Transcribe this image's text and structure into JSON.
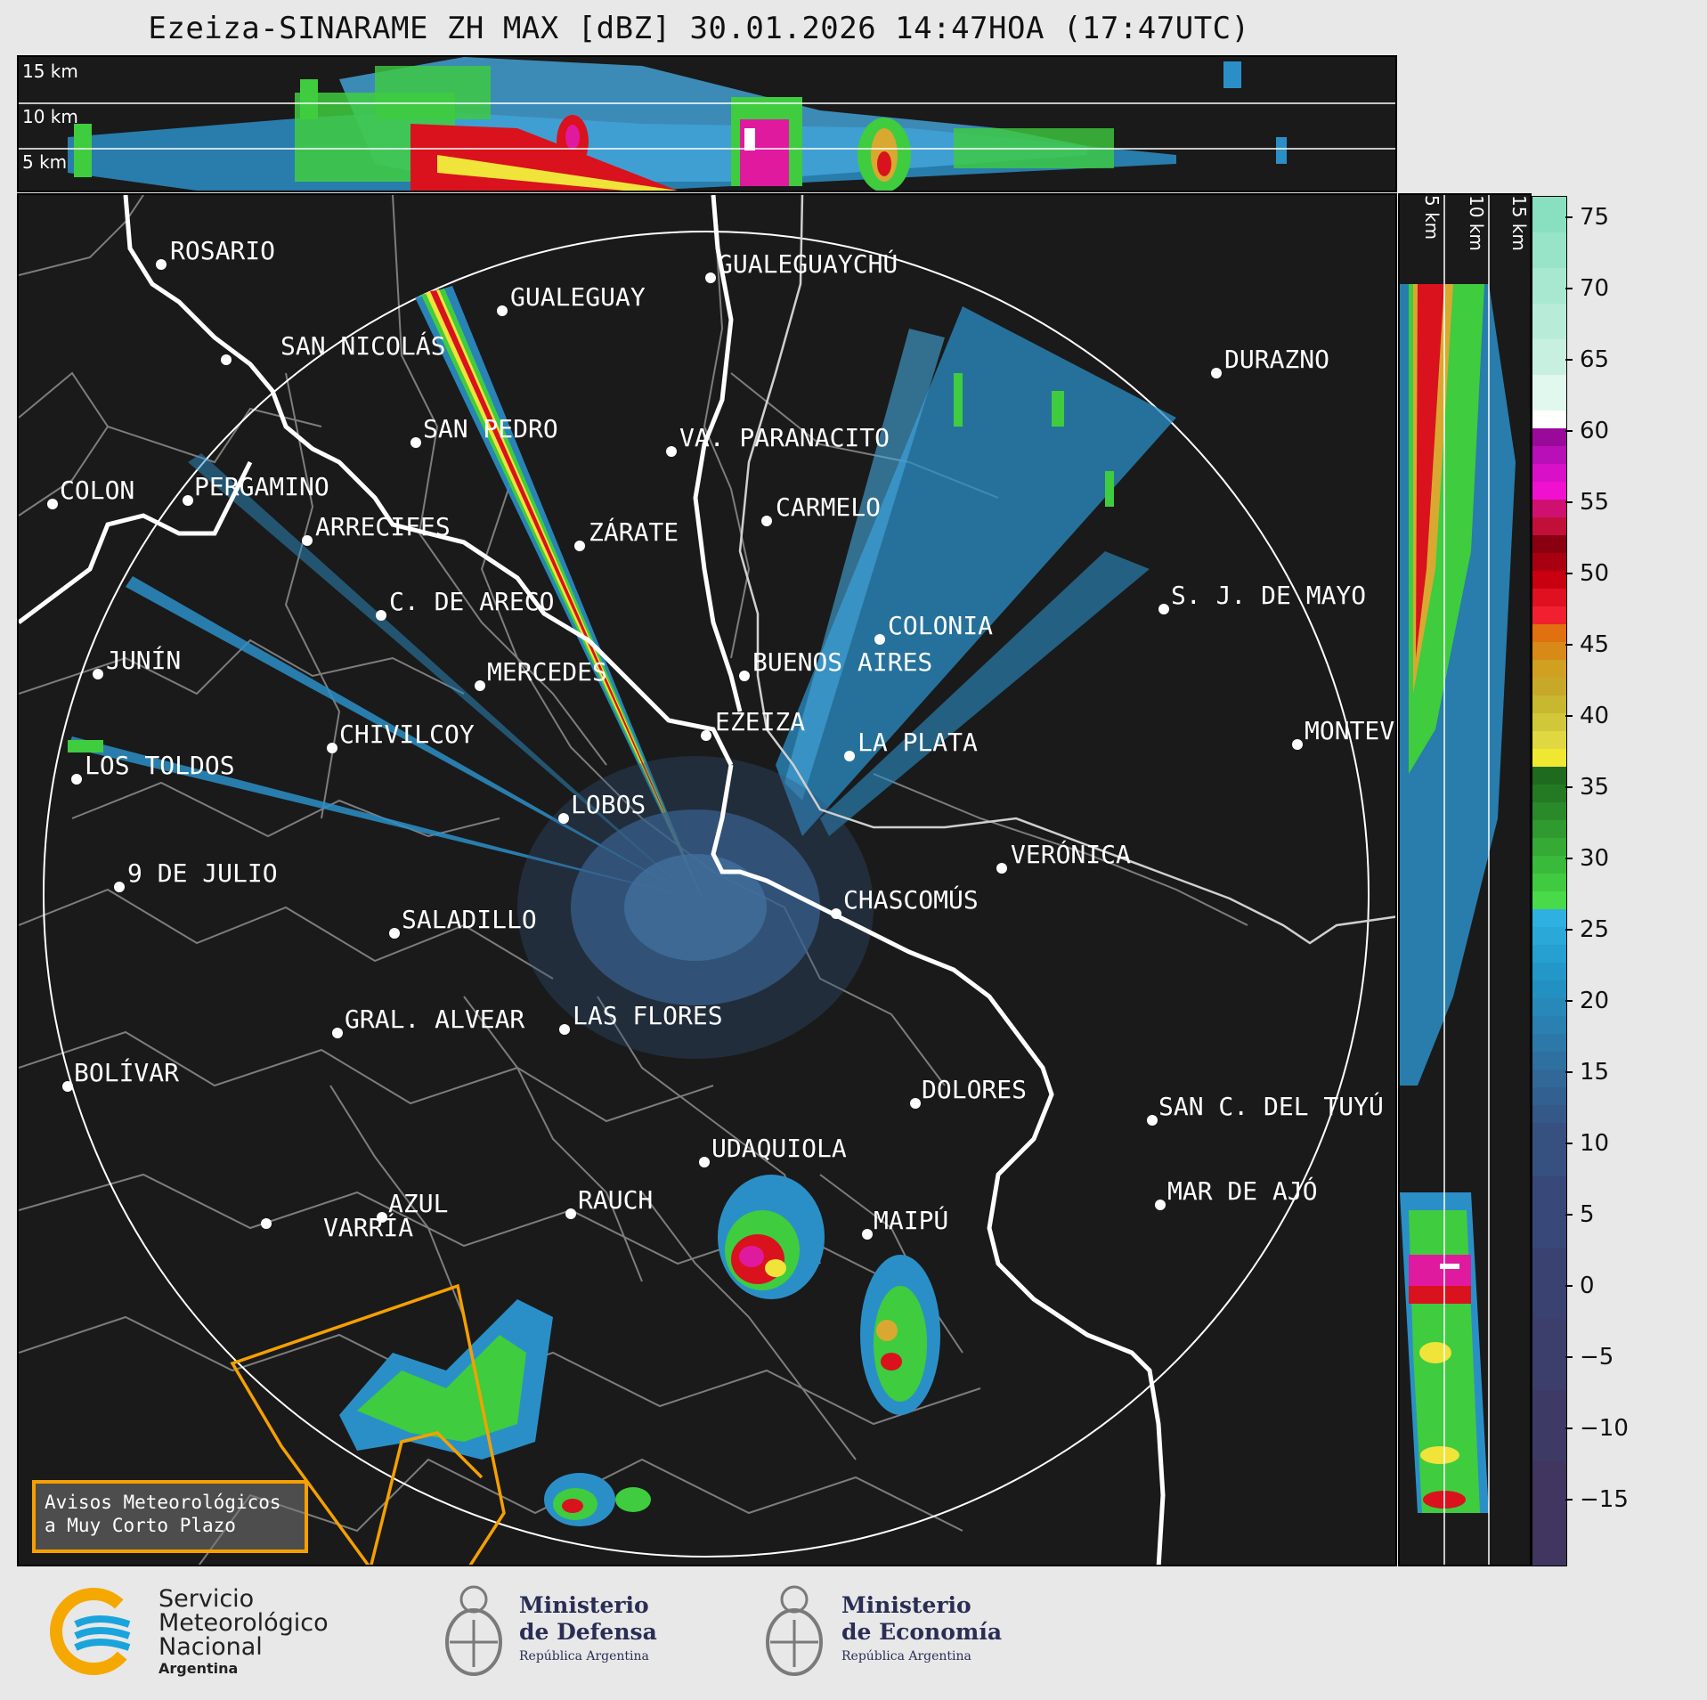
{
  "title": "Ezeiza-SINARAME ZH MAX [dBZ] 30.01.2026 14:47HOA (17:47UTC)",
  "top_panel": {
    "height_labels": [
      "15 km",
      "10 km",
      "5 km"
    ]
  },
  "side_panel": {
    "height_labels": [
      "5 km",
      "10 km",
      "15 km"
    ]
  },
  "colorbar": {
    "ticks": [
      "75",
      "70",
      "65",
      "60",
      "55",
      "50",
      "45",
      "40",
      "35",
      "30",
      "25",
      "20",
      "15",
      "10",
      "5",
      "0",
      "−5",
      "−10",
      "−15"
    ]
  },
  "cities": [
    {
      "name": "ROSARIO"
    },
    {
      "name": "GUALEGUAYCHÚ"
    },
    {
      "name": "GUALEGUAY"
    },
    {
      "name": "SAN NICOLÁS"
    },
    {
      "name": "DURAZNO"
    },
    {
      "name": "SAN PEDRO"
    },
    {
      "name": "VA. PARANACITO"
    },
    {
      "name": "COLON"
    },
    {
      "name": "PERGAMINO"
    },
    {
      "name": "CARMELO"
    },
    {
      "name": "ARRECIFES"
    },
    {
      "name": "ZÁRATE"
    },
    {
      "name": "S. J. DE MAYO"
    },
    {
      "name": "C. DE ARECO"
    },
    {
      "name": "COLONIA"
    },
    {
      "name": "JUNÍN"
    },
    {
      "name": "BUENOS AIRES"
    },
    {
      "name": "MERCEDES"
    },
    {
      "name": "EZEIZA"
    },
    {
      "name": "MONTEV"
    },
    {
      "name": "CHIVILCOY"
    },
    {
      "name": "LA PLATA"
    },
    {
      "name": "LOS TOLDOS"
    },
    {
      "name": "LOBOS"
    },
    {
      "name": "VERÓNICA"
    },
    {
      "name": "9 DE JULIO"
    },
    {
      "name": "CHASCOMÚS"
    },
    {
      "name": "SALADILLO"
    },
    {
      "name": "GRAL. ALVEAR"
    },
    {
      "name": "LAS FLORES"
    },
    {
      "name": "BOLÍVAR"
    },
    {
      "name": "DOLORES"
    },
    {
      "name": "SAN C. DEL TUYÚ"
    },
    {
      "name": "UDAQUIOLA"
    },
    {
      "name": "AZUL"
    },
    {
      "name": "MAR DE AJÓ"
    },
    {
      "name": "RAUCH"
    },
    {
      "name": "MAIPÚ"
    },
    {
      "name": "VARRÍA"
    }
  ],
  "warning_box": {
    "line1": "Avisos Meteorológicos",
    "line2": "a Muy Corto Plazo"
  },
  "footer": {
    "smn": {
      "line1": "Servicio",
      "line2": "Meteorológico",
      "line3": "Nacional",
      "line4": "Argentina"
    },
    "defensa": {
      "line1": "Ministerio",
      "line2": "de Defensa",
      "sub": "República Argentina"
    },
    "economia": {
      "line1": "Ministerio",
      "line2": "de Economía",
      "sub": "República Argentina"
    }
  },
  "colors": {
    "background": "#1a1a1a",
    "warning": "#f5a000",
    "range_ring": "#ffffff",
    "borders": "#888888"
  }
}
